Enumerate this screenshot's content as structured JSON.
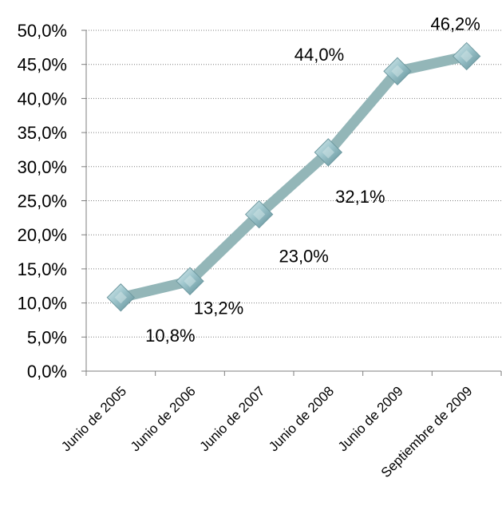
{
  "chart_data": {
    "type": "line",
    "categories": [
      "Junio de 2005",
      "Junio de 2006",
      "Junio de 2007",
      "Junio de 2008",
      "Junio de 2009",
      "Septiembre de 2009"
    ],
    "values": [
      10.8,
      13.2,
      23.0,
      32.1,
      44.0,
      46.2
    ],
    "data_labels": [
      "10,8%",
      "13,2%",
      "23,0%",
      "32,1%",
      "44,0%",
      "46,2%"
    ],
    "y_ticks": [
      "0,0%",
      "5,0%",
      "10,0%",
      "15,0%",
      "20,0%",
      "25,0%",
      "30,0%",
      "35,0%",
      "40,0%",
      "45,0%",
      "50,0%"
    ],
    "ylim": [
      0,
      50
    ],
    "grid": true,
    "legend": "none",
    "line_color": "#93b6b8",
    "marker_color": "#8fb8c0",
    "marker_shape": "diamond"
  }
}
